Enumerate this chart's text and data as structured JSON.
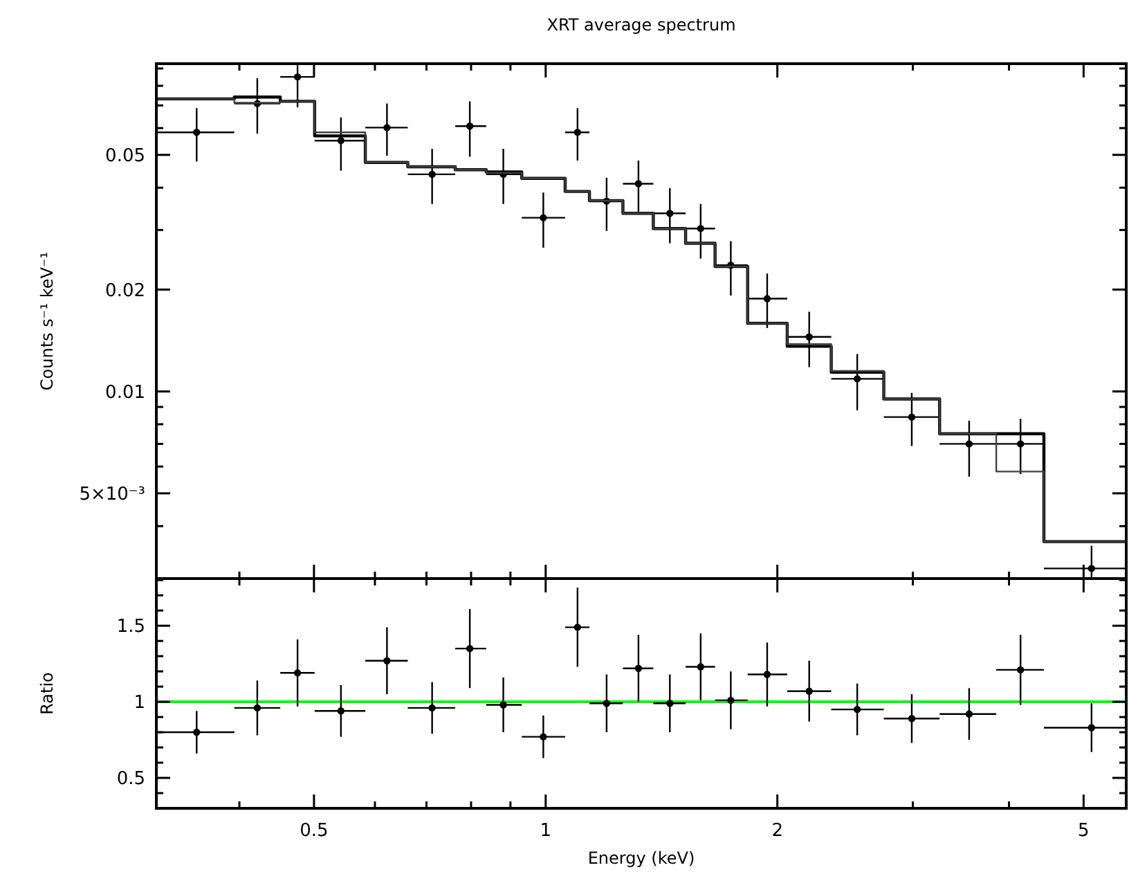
{
  "chart_data": [
    {
      "type": "scatter",
      "title": "XRT average spectrum",
      "ylabel": "Counts s⁻¹ keV⁻¹",
      "log": "xy",
      "tick_labels": "y",
      "xlim": [
        0.312,
        5.68
      ],
      "ylim": [
        0.0028,
        0.093
      ],
      "xticks": [
        {
          "value": 0.4,
          "label": null
        },
        0.5,
        {
          "value": 0.6,
          "label": null
        },
        {
          "value": 0.7,
          "label": null
        },
        {
          "value": 0.8,
          "label": null
        },
        {
          "value": 0.9,
          "label": null
        },
        1,
        2,
        {
          "value": 3,
          "label": null
        },
        {
          "value": 4,
          "label": null
        },
        5
      ],
      "yticks": [
        {
          "value": 0.004,
          "label": null
        },
        {
          "value": 0.005,
          "label": "5×10⁻³"
        },
        {
          "value": 0.006,
          "label": null
        },
        {
          "value": 0.007,
          "label": null
        },
        {
          "value": 0.008,
          "label": null
        },
        {
          "value": 0.009,
          "label": null
        },
        0.01,
        0.02,
        {
          "value": 0.03,
          "label": null
        },
        {
          "value": 0.04,
          "label": null
        },
        0.05,
        {
          "value": 0.06,
          "label": null
        },
        {
          "value": 0.07,
          "label": null
        },
        {
          "value": 0.08,
          "label": null
        },
        {
          "value": 0.09,
          "label": null
        }
      ],
      "series": [
        {
          "marker": "circle",
          "color": "#000000",
          "x": [
            0.352,
            0.422,
            0.476,
            0.542,
            0.622,
            0.712,
            0.797,
            0.881,
            0.993,
            1.1,
            1.2,
            1.32,
            1.45,
            1.59,
            1.74,
            1.94,
            2.2,
            2.54,
            2.99,
            3.55,
            4.14,
            5.12
          ],
          "values": [
            0.0583,
            0.0709,
            0.085,
            0.0551,
            0.0602,
            0.0438,
            0.0608,
            0.0438,
            0.0326,
            0.0583,
            0.0365,
            0.0411,
            0.0336,
            0.0303,
            0.0236,
            0.0188,
            0.0145,
            0.0109,
            0.0084,
            0.007,
            0.007,
            0.003
          ],
          "errors": [
            [
              0.0478,
              0.0687
            ],
            [
              0.0578,
              0.0843
            ],
            [
              0.0691,
              0.092
            ],
            [
              0.0449,
              0.0645
            ],
            [
              0.0497,
              0.0709
            ],
            [
              0.0358,
              0.0521
            ],
            [
              0.0494,
              0.072
            ],
            [
              0.0358,
              0.0521
            ],
            [
              0.0266,
              0.0387
            ],
            [
              0.0481,
              0.0687
            ],
            [
              0.0298,
              0.0428
            ],
            [
              0.034,
              0.0481
            ],
            [
              0.0274,
              0.0399
            ],
            [
              0.0247,
              0.0358
            ],
            [
              0.0192,
              0.0278
            ],
            [
              0.0154,
              0.0223
            ],
            [
              0.0118,
              0.0172
            ],
            [
              0.0088,
              0.0129
            ],
            [
              0.0069,
              0.0099
            ],
            [
              0.0056,
              0.0082
            ],
            [
              0.0057,
              0.0083
            ],
            [
              0.0028,
              0.0035
            ]
          ],
          "xerrors": [
            [
              0.313,
              0.394
            ],
            [
              0.394,
              0.452
            ],
            [
              0.452,
              0.501
            ],
            [
              0.501,
              0.583
            ],
            [
              0.583,
              0.662
            ],
            [
              0.662,
              0.763
            ],
            [
              0.763,
              0.837
            ],
            [
              0.837,
              0.931
            ],
            [
              0.931,
              1.06
            ],
            [
              1.06,
              1.14
            ],
            [
              1.14,
              1.26
            ],
            [
              1.26,
              1.38
            ],
            [
              1.38,
              1.52
            ],
            [
              1.52,
              1.66
            ],
            [
              1.66,
              1.83
            ],
            [
              1.83,
              2.06
            ],
            [
              2.06,
              2.35
            ],
            [
              2.35,
              2.75
            ],
            [
              2.75,
              3.25
            ],
            [
              3.25,
              3.85
            ],
            [
              3.85,
              4.44
            ],
            [
              4.44,
              5.68
            ]
          ]
        },
        {
          "type": "step",
          "color": "#000000",
          "x": [
            0.313,
            0.394,
            0.452,
            0.501,
            0.583,
            0.662,
            0.763,
            0.837,
            0.931,
            1.06,
            1.14,
            1.26,
            1.38,
            1.52,
            1.66,
            1.83,
            2.06,
            2.35,
            2.75,
            3.25,
            3.85,
            4.44,
            5.68
          ],
          "values": [
            0.0732,
            0.0741,
            0.072,
            0.0569,
            0.0475,
            0.0461,
            0.0452,
            0.0445,
            0.0426,
            0.039,
            0.0366,
            0.0336,
            0.0303,
            0.0274,
            0.0234,
            0.0159,
            0.0136,
            0.0114,
            0.0095,
            0.0075,
            0.0075,
            0.0036,
            0.0036
          ]
        },
        {
          "type": "step",
          "color": "#404040",
          "x": [
            0.313,
            0.394,
            0.452,
            0.501,
            0.583,
            0.662,
            0.763,
            0.837,
            0.931,
            1.06,
            1.14,
            1.26,
            1.38,
            1.52,
            1.66,
            1.83,
            2.06,
            2.35,
            2.75,
            3.25,
            3.85,
            4.44,
            5.68
          ],
          "values": [
            0.0732,
            0.0713,
            0.072,
            0.0583,
            0.0475,
            0.0461,
            0.0452,
            0.0442,
            0.0426,
            0.039,
            0.0366,
            0.0336,
            0.0303,
            0.0274,
            0.0234,
            0.0159,
            0.0138,
            0.0115,
            0.0095,
            0.0075,
            0.0058,
            0.0036,
            0.0036
          ]
        }
      ]
    },
    {
      "type": "scatter",
      "xlabel": "Energy (keV)",
      "ylabel": "Ratio",
      "log": "x",
      "xlim": [
        0.312,
        5.68
      ],
      "ylim": [
        0.3,
        1.81
      ],
      "xticks": [
        {
          "value": 0.4,
          "label": null
        },
        0.5,
        {
          "value": 0.6,
          "label": null
        },
        {
          "value": 0.7,
          "label": null
        },
        {
          "value": 0.8,
          "label": null
        },
        {
          "value": 0.9,
          "label": null
        },
        1,
        2,
        {
          "value": 3,
          "label": null
        },
        {
          "value": 4,
          "label": null
        },
        5
      ],
      "yticks": [
        {
          "value": 0.4,
          "label": null
        },
        0.5,
        {
          "value": 0.6,
          "label": null
        },
        {
          "value": 0.7,
          "label": null
        },
        {
          "value": 0.8,
          "label": null
        },
        {
          "value": 0.9,
          "label": null
        },
        1,
        {
          "value": 1.1,
          "label": null
        },
        {
          "value": 1.2,
          "label": null
        },
        {
          "value": 1.3,
          "label": null
        },
        {
          "value": 1.4,
          "label": null
        },
        1.5,
        {
          "value": 1.6,
          "label": null
        },
        {
          "value": 1.7,
          "label": null
        },
        {
          "value": 1.8,
          "label": null
        }
      ],
      "ref_lines": [
        {
          "axis": "y",
          "value": 1,
          "color": "#00ff00"
        }
      ],
      "series": [
        {
          "marker": "circle",
          "color": "#000000",
          "x": [
            0.352,
            0.422,
            0.476,
            0.542,
            0.622,
            0.712,
            0.797,
            0.881,
            0.993,
            1.1,
            1.2,
            1.32,
            1.45,
            1.59,
            1.74,
            1.94,
            2.2,
            2.54,
            2.99,
            3.55,
            4.14,
            5.12
          ],
          "values": [
            0.8,
            0.96,
            1.19,
            0.94,
            1.27,
            0.96,
            1.35,
            0.98,
            0.77,
            1.49,
            0.99,
            1.22,
            0.99,
            1.23,
            1.01,
            1.18,
            1.07,
            0.95,
            0.89,
            0.92,
            1.21,
            0.83
          ],
          "errors": [
            0.14,
            0.18,
            0.22,
            0.17,
            0.22,
            0.17,
            0.26,
            0.18,
            0.14,
            0.26,
            0.19,
            0.22,
            0.19,
            0.22,
            0.19,
            0.21,
            0.2,
            0.17,
            0.16,
            0.17,
            0.23,
            0.16
          ],
          "xerrors": [
            [
              0.313,
              0.394
            ],
            [
              0.394,
              0.452
            ],
            [
              0.452,
              0.501
            ],
            [
              0.501,
              0.583
            ],
            [
              0.583,
              0.662
            ],
            [
              0.662,
              0.763
            ],
            [
              0.763,
              0.837
            ],
            [
              0.837,
              0.931
            ],
            [
              0.931,
              1.06
            ],
            [
              1.06,
              1.14
            ],
            [
              1.14,
              1.26
            ],
            [
              1.26,
              1.38
            ],
            [
              1.38,
              1.52
            ],
            [
              1.52,
              1.66
            ],
            [
              1.66,
              1.83
            ],
            [
              1.83,
              2.06
            ],
            [
              2.06,
              2.35
            ],
            [
              2.35,
              2.75
            ],
            [
              2.75,
              3.25
            ],
            [
              3.25,
              3.85
            ],
            [
              3.85,
              4.44
            ],
            [
              4.44,
              5.68
            ]
          ]
        }
      ]
    }
  ]
}
